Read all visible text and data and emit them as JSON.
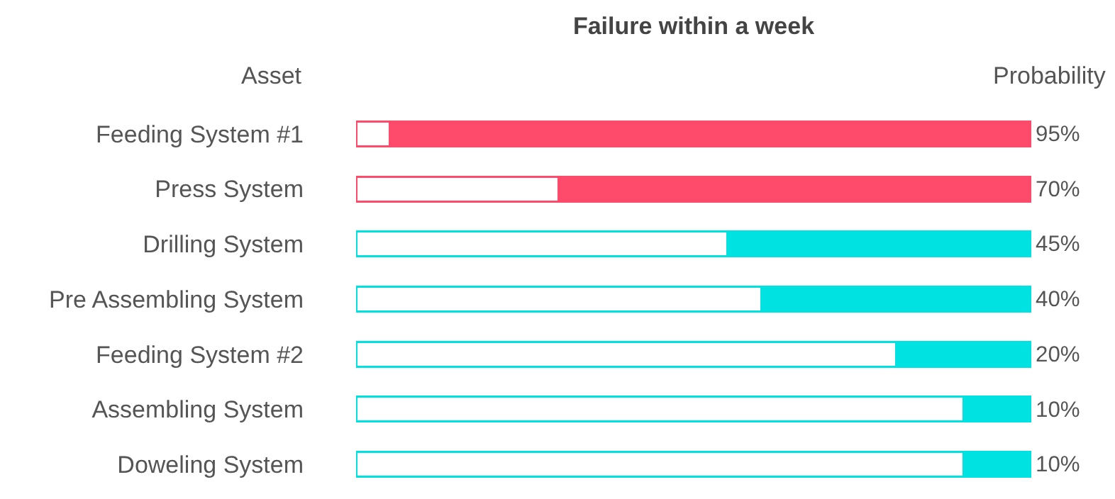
{
  "chart_data": {
    "type": "bar",
    "orientation": "horizontal",
    "stacked": true,
    "title": "Failure within a week",
    "categories": [
      "Feeding System #1",
      "Press System",
      "Drilling System",
      "Pre Assembling System",
      "Feeding System #2",
      "Assembling System",
      "Doweling System"
    ],
    "series": [
      {
        "colors": [
          "#ffffff",
          "#ffffff",
          "#ffffff",
          "#ffffff",
          "#ffffff",
          "#ffffff",
          "#ffffff"
        ],
        "values": [
          5,
          30,
          55,
          60,
          80,
          90,
          90
        ]
      },
      {
        "colors": [
          "#ff4b6b",
          "#ff4b6b",
          "#00e1e1",
          "#00e1e1",
          "#00e1e1",
          "#00e1e1",
          "#00e1e1"
        ],
        "values": [
          95,
          70,
          45,
          40,
          20,
          10,
          10
        ],
        "value_labels": [
          "95%",
          "70%",
          "45%",
          "40%",
          "20%",
          "10%",
          "10%"
        ]
      }
    ],
    "xlim": [
      0,
      100
    ],
    "tick_labels": "y",
    "annotations": [
      "Asset",
      "Probability"
    ]
  }
}
